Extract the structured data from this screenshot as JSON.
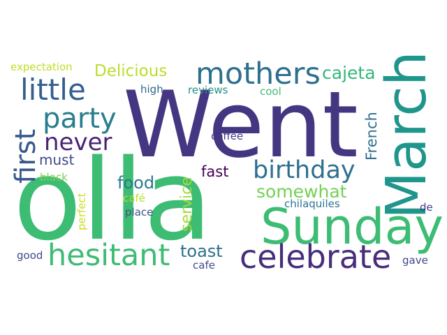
{
  "word_cloud": {
    "words": [
      {
        "text": "Went",
        "color": "#453681"
      },
      {
        "text": "olla",
        "color": "#3dbc74"
      },
      {
        "text": "March",
        "color": "#1f958b"
      },
      {
        "text": "Sunday",
        "color": "#3dbc74"
      },
      {
        "text": "celebrate",
        "color": "#472d7b"
      },
      {
        "text": "hesitant",
        "color": "#3dbc74"
      },
      {
        "text": "mothers",
        "color": "#2d708e"
      },
      {
        "text": "little",
        "color": "#355f8d"
      },
      {
        "text": "party",
        "color": "#287d8e"
      },
      {
        "text": "birthday",
        "color": "#2d708e"
      },
      {
        "text": "first",
        "color": "#38588c"
      },
      {
        "text": "never",
        "color": "#482475"
      },
      {
        "text": "Delicious",
        "color": "#b8de29"
      },
      {
        "text": "cajeta",
        "color": "#35b779"
      },
      {
        "text": "French",
        "color": "#2d708e"
      },
      {
        "text": "somewhat",
        "color": "#75d054"
      },
      {
        "text": "food",
        "color": "#2a788e"
      },
      {
        "text": "service",
        "color": "#a5db36"
      },
      {
        "text": "toast",
        "color": "#2d708e"
      },
      {
        "text": "fast",
        "color": "#440154"
      },
      {
        "text": "must",
        "color": "#3e4a89"
      },
      {
        "text": "expectation",
        "color": "#bddf26"
      },
      {
        "text": "high",
        "color": "#31688e"
      },
      {
        "text": "reviews",
        "color": "#21918c"
      },
      {
        "text": "cool",
        "color": "#3fbc73"
      },
      {
        "text": "coffee",
        "color": "#443983"
      },
      {
        "text": "black",
        "color": "#7ad151"
      },
      {
        "text": "café",
        "color": "#b5de2b"
      },
      {
        "text": "perfect",
        "color": "#c8e020"
      },
      {
        "text": "place",
        "color": "#3b528b"
      },
      {
        "text": "chilaquiles",
        "color": "#2c728e"
      },
      {
        "text": "de",
        "color": "#443a83"
      },
      {
        "text": "good",
        "color": "#3e4989"
      },
      {
        "text": "cafe",
        "color": "#3e4989"
      },
      {
        "text": "gave",
        "color": "#3e4989"
      }
    ]
  }
}
